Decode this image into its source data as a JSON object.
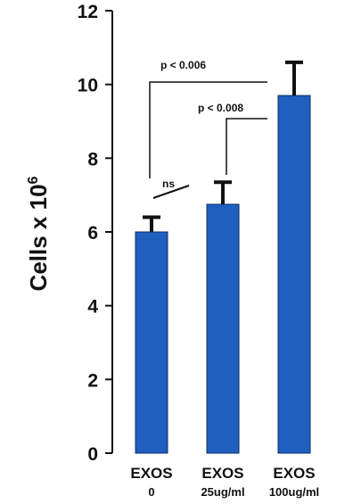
{
  "chart_data": {
    "type": "bar",
    "title": "",
    "ylabel": {
      "base": "Cells x 10",
      "exponent": "6"
    },
    "xlabel": "",
    "ylim": [
      0,
      12
    ],
    "yticks": [
      "0",
      "2",
      "4",
      "6",
      "8",
      "10",
      "12"
    ],
    "categories": [
      {
        "line1": "EXOS",
        "line2": "0"
      },
      {
        "line1": "EXOS",
        "line2": "25ug/ml"
      },
      {
        "line1": "EXOS",
        "line2": "100ug/ml"
      }
    ],
    "values": [
      6.0,
      6.75,
      9.7
    ],
    "errors": [
      0.4,
      0.6,
      0.9
    ],
    "bar_color": "#1f5fbf",
    "grid": false,
    "legend": "none",
    "annotations": [
      {
        "label": "p < 0.006",
        "from": 0,
        "to": 2
      },
      {
        "label": "p < 0.008",
        "from": 1,
        "to": 2
      },
      {
        "label": "ns",
        "from": 0,
        "to": 1
      }
    ]
  }
}
